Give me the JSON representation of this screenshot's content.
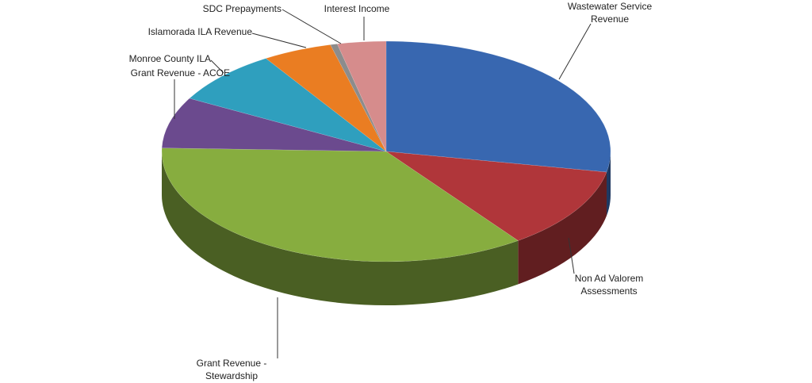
{
  "chart_data": {
    "type": "pie",
    "categories": [
      "Wastewater Service Revenue",
      "Non Ad Valorem Assessments",
      "Grant Revenue - Stewardship",
      "Grant Revenue - ACOE",
      "Monroe County ILA",
      "Islamorada ILA Revenue",
      "SDC Prepayments",
      "Interest Income"
    ],
    "values": [
      28,
      12,
      35.5,
      7.5,
      8,
      5,
      0.5,
      3.5
    ],
    "colors": [
      "#3867b0",
      "#b0363a",
      "#87ad3f",
      "#6b4a8e",
      "#2f9fbe",
      "#ea7d22",
      "#8c8c8c",
      "#d68c8c"
    ],
    "three_d": true
  }
}
